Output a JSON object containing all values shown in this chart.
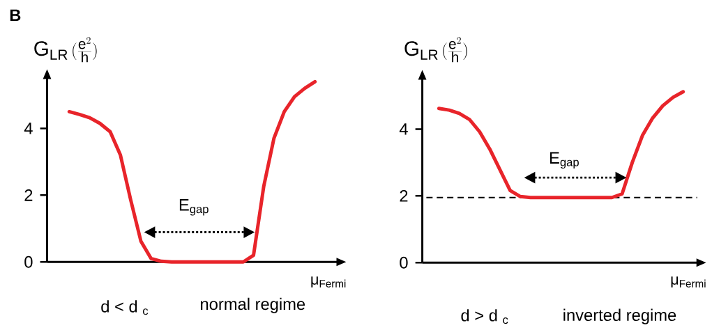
{
  "chart_data": [
    {
      "type": "line",
      "xlabel": "μ$_{Fermi}$",
      "ylabel": "\\mathrm{G}_{\\mathrm{LR}}\\,\\Big(\\frac{\\mathrm{e}^{2}}{\\mathrm{h}}\\Big)",
      "categories": [
        null,
        null,
        null,
        null,
        null,
        null,
        null,
        null,
        null,
        null,
        null,
        null,
        null,
        null,
        null,
        null,
        null,
        null,
        null,
        null,
        null,
        null,
        null,
        null,
        null
      ],
      "series": [
        {
          "color": "#e8242a",
          "values": [
            4.5,
            4.42,
            4.32,
            4.15,
            3.9,
            3.2,
            1.86,
            0.62,
            0.1,
            0.02,
            0,
            0,
            0,
            0,
            0,
            0,
            0,
            0,
            0.2,
            2.27,
            3.71,
            4.5,
            4.95,
            5.2,
            5.4
          ]
        }
      ],
      "ylim": [
        0,
        5.5
      ],
      "yticks": [
        0,
        2,
        4
      ],
      "tick_labels": "y",
      "annotations": [
        "B",
        "E$_{gap}$",
        "d < d $_{c}$",
        "normal regime"
      ]
    },
    {
      "type": "line",
      "xlabel": "μ$_{Fermi}$",
      "ylabel": "\\mathrm{G}_{\\mathrm{LR}}\\,\\Big(\\frac{\\mathrm{e}^{2}}{\\mathrm{h}}\\Big)",
      "categories": [
        null,
        null,
        null,
        null,
        null,
        null,
        null,
        null,
        null,
        null,
        null,
        null,
        null,
        null,
        null,
        null,
        null,
        null,
        null,
        null,
        null,
        null,
        null,
        null,
        null
      ],
      "series": [
        {
          "color": "#e8242a",
          "values": [
            4.62,
            4.57,
            4.47,
            4.29,
            3.92,
            3.4,
            2.78,
            2.16,
            1.98,
            1.95,
            1.95,
            1.95,
            1.95,
            1.95,
            1.95,
            1.95,
            1.95,
            1.95,
            2.06,
            3.0,
            3.81,
            4.33,
            4.7,
            4.95,
            5.12
          ]
        }
      ],
      "ylim": [
        0,
        5.5
      ],
      "yticks": [
        0,
        2,
        4
      ],
      "tick_labels": "y",
      "ref_lines": [
        {
          "axis": "y",
          "value": 1.95,
          "color": "#000000",
          "line_style": "dashed"
        }
      ],
      "annotations": [
        "E$_{gap}$",
        "d > d $_{c}$",
        "inverted regime"
      ]
    }
  ]
}
